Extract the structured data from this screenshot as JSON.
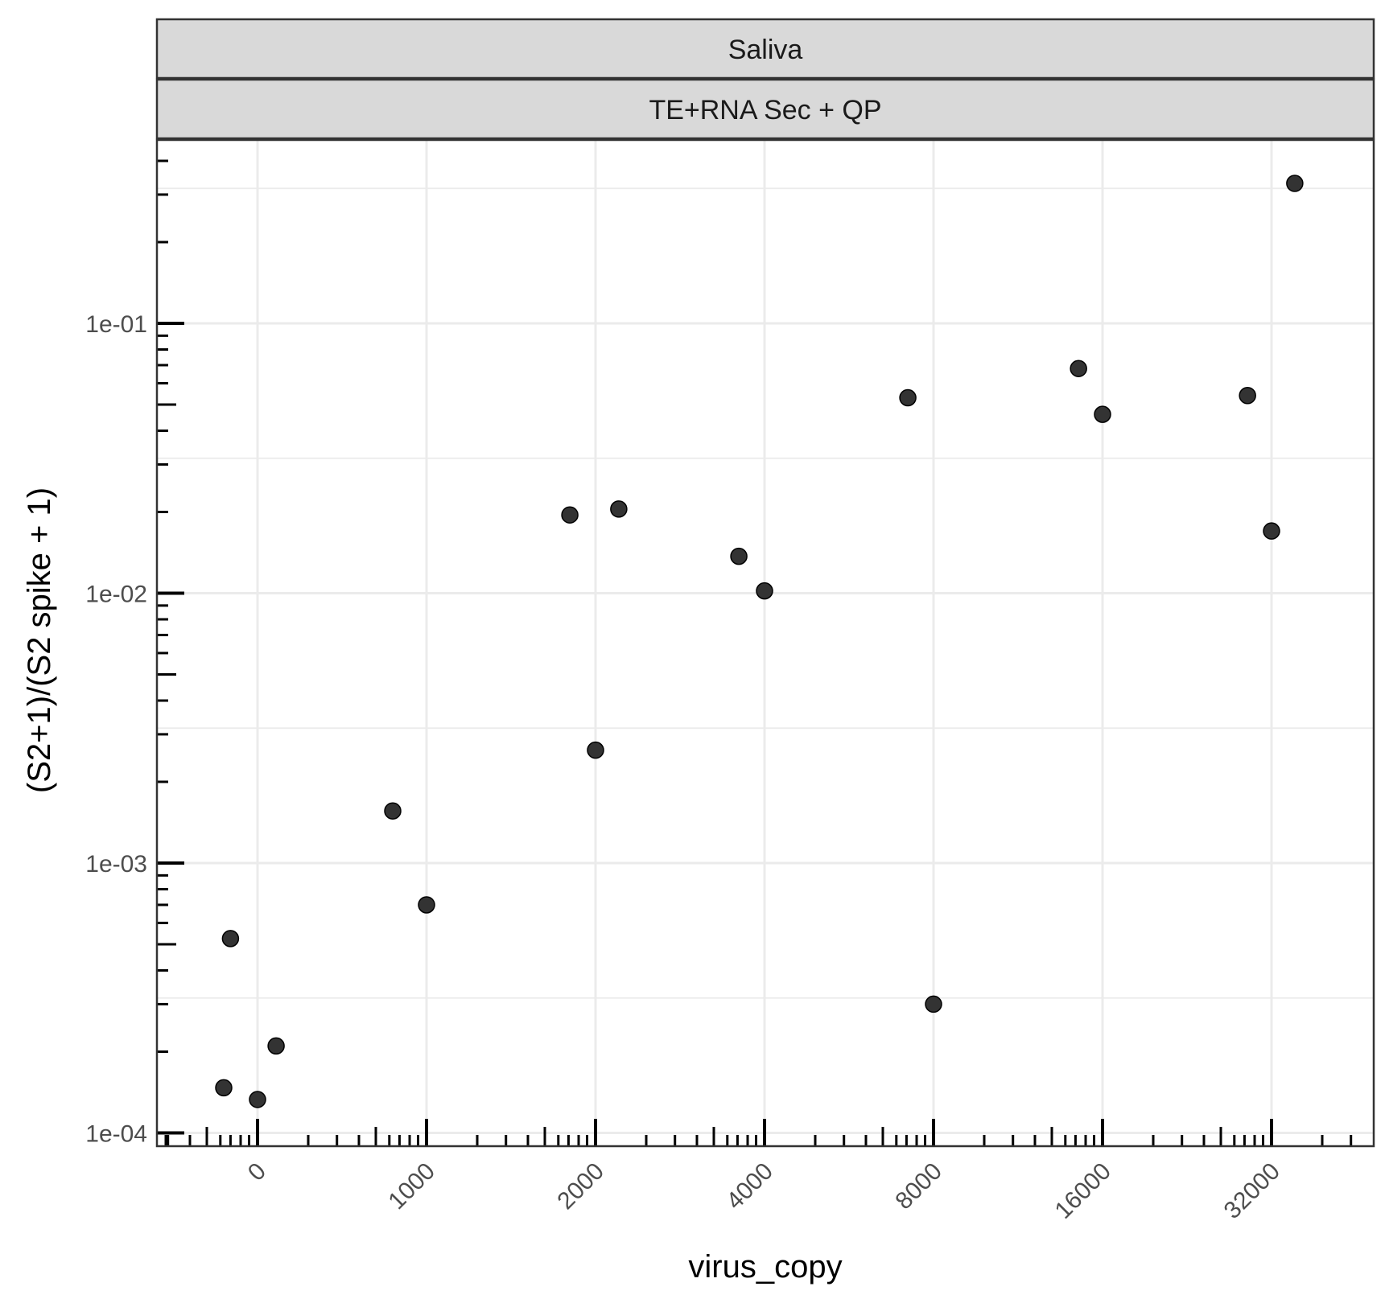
{
  "chart_data": {
    "type": "scatter",
    "facets": [
      "Saliva",
      "TE+RNA Sec + QP"
    ],
    "xlabel": "virus_copy",
    "ylabel": "(S2+1)/(S2 spike + 1)",
    "x_scale": "pseudo-log2 (0 at origin, doubling from 1000)",
    "y_scale": "log10",
    "x_ticks": [
      0,
      1000,
      2000,
      4000,
      8000,
      16000,
      32000
    ],
    "x_tick_labels": [
      "0",
      "1000",
      "2000",
      "4000",
      "8000",
      "16000",
      "32000"
    ],
    "y_ticks": [
      0.0001,
      0.001,
      0.01,
      0.1
    ],
    "y_tick_labels": [
      "1e-04",
      "1e-03",
      "1e-02",
      "1e-01"
    ],
    "xlim": [
      -600,
      70000
    ],
    "ylim": [
      9.1e-05,
      0.5
    ],
    "grid": true,
    "legend": "none",
    "point_color": "#333333",
    "points": [
      {
        "x": -200,
        "y": 0.000147
      },
      {
        "x": -160,
        "y": 0.000525
      },
      {
        "x": 0,
        "y": 0.000133
      },
      {
        "x": 110,
        "y": 0.00021
      },
      {
        "x": 800,
        "y": 0.00156
      },
      {
        "x": 1000,
        "y": 0.0007
      },
      {
        "x": 1800,
        "y": 0.0195
      },
      {
        "x": 2000,
        "y": 0.00262
      },
      {
        "x": 2200,
        "y": 0.0205
      },
      {
        "x": 3600,
        "y": 0.0137
      },
      {
        "x": 4000,
        "y": 0.0102
      },
      {
        "x": 7200,
        "y": 0.053
      },
      {
        "x": 8000,
        "y": 0.0003
      },
      {
        "x": 14500,
        "y": 0.068
      },
      {
        "x": 16000,
        "y": 0.046
      },
      {
        "x": 29000,
        "y": 0.054
      },
      {
        "x": 32000,
        "y": 0.017
      },
      {
        "x": 35200,
        "y": 0.33
      }
    ]
  }
}
